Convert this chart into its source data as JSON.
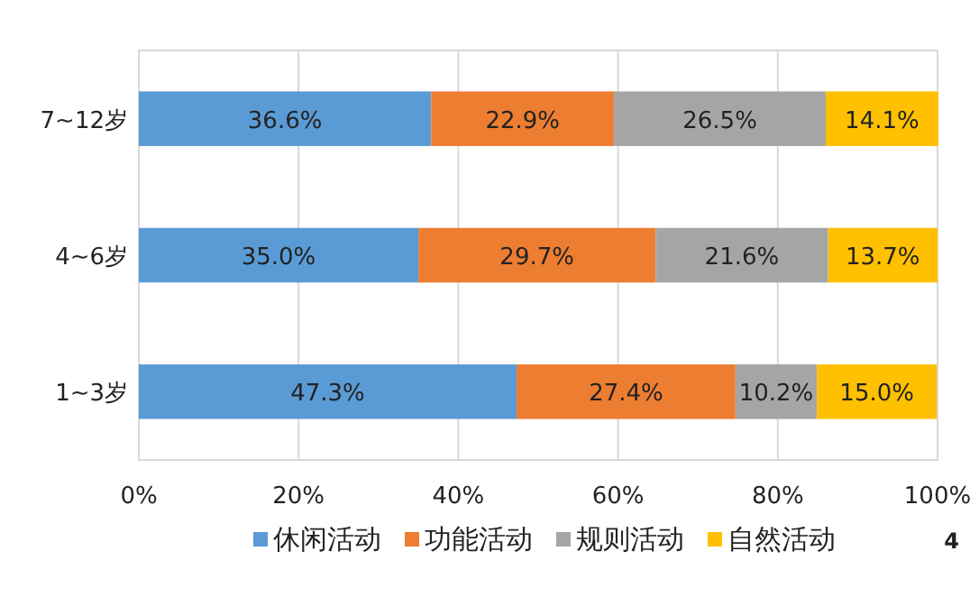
{
  "chart_data": {
    "type": "bar",
    "orientation": "horizontal",
    "stacked": true,
    "categories": [
      "7~12岁",
      "4~6岁",
      "1~3岁"
    ],
    "series": [
      {
        "name": "休闲活动",
        "color": "#5b9bd5",
        "values": [
          36.6,
          35.0,
          47.3
        ],
        "value_labels": [
          "36.6%",
          "35.0%",
          "47.3%"
        ]
      },
      {
        "name": "功能活动",
        "color": "#ed7d31",
        "values": [
          22.9,
          29.7,
          27.4
        ],
        "value_labels": [
          "22.9%",
          "29.7%",
          "27.4%"
        ]
      },
      {
        "name": "规则活动",
        "color": "#a5a5a5",
        "values": [
          26.5,
          21.6,
          10.2
        ],
        "value_labels": [
          "26.5%",
          "21.6%",
          "10.2%"
        ]
      },
      {
        "name": "自然活动",
        "color": "#ffc000",
        "values": [
          14.1,
          13.7,
          15.0
        ],
        "value_labels": [
          "14.1%",
          "13.7%",
          "15.0%"
        ]
      }
    ],
    "xlim": [
      0,
      100
    ],
    "xticks": [
      {
        "value": 0,
        "label": "0%"
      },
      {
        "value": 20,
        "label": "20%"
      },
      {
        "value": 40,
        "label": "40%"
      },
      {
        "value": 60,
        "label": "60%"
      },
      {
        "value": 80,
        "label": "80%"
      },
      {
        "value": 100,
        "label": "100%"
      }
    ],
    "grid": "x",
    "legend": "bottom",
    "annotations": [
      "4"
    ]
  }
}
